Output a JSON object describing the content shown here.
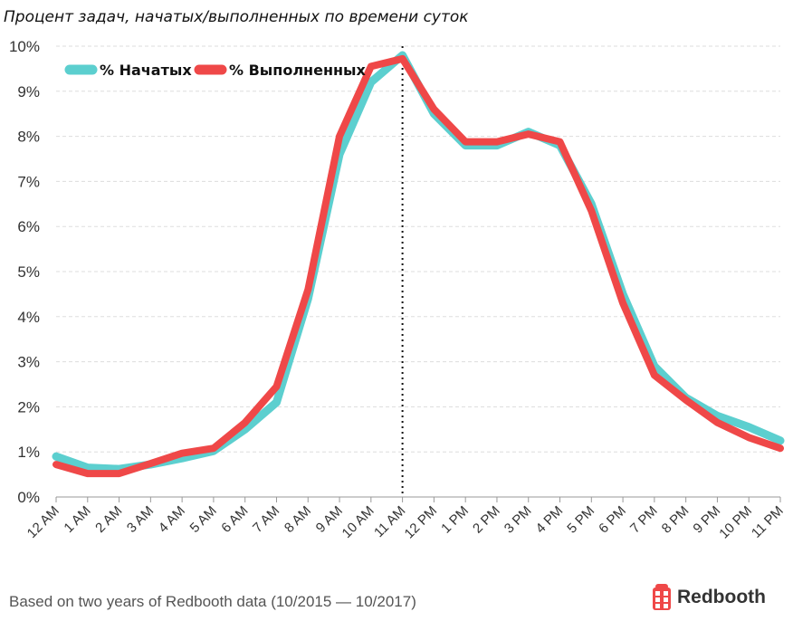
{
  "chart_data": {
    "type": "line",
    "title": "Процент задач, начатых/выполненных по времени суток",
    "xlabel": "",
    "ylabel": "",
    "categories": [
      "12 AM",
      "1 AM",
      "2 AM",
      "3 AM",
      "4 AM",
      "5 AM",
      "6 AM",
      "7 AM",
      "8 AM",
      "9 AM",
      "10 AM",
      "11 AM",
      "12 PM",
      "1 PM",
      "2 PM",
      "3 PM",
      "4 PM",
      "5 PM",
      "6 PM",
      "7 PM",
      "8 PM",
      "9 PM",
      "10 PM",
      "11 PM"
    ],
    "yticks": [
      "0%",
      "1%",
      "2%",
      "3%",
      "4%",
      "5%",
      "6%",
      "7%",
      "8%",
      "9%",
      "10%"
    ],
    "ylim": [
      0,
      10
    ],
    "grid": "horizontal dashed",
    "legend_position": "top-left",
    "marker_line": "11 AM",
    "series": [
      {
        "name": "% Начатых",
        "color": "#5ccfcf",
        "values": [
          0.9,
          0.65,
          0.62,
          0.72,
          0.86,
          1.02,
          1.5,
          2.1,
          4.4,
          7.6,
          9.2,
          9.8,
          8.5,
          7.8,
          7.8,
          8.1,
          7.8,
          6.5,
          4.5,
          2.9,
          2.2,
          1.8,
          1.55,
          1.25
        ]
      },
      {
        "name": "% Выполненных",
        "color": "#ef4848",
        "values": [
          0.72,
          0.52,
          0.52,
          0.74,
          0.97,
          1.08,
          1.65,
          2.45,
          4.6,
          8.0,
          9.55,
          9.72,
          8.6,
          7.88,
          7.88,
          8.05,
          7.88,
          6.35,
          4.3,
          2.7,
          2.15,
          1.65,
          1.32,
          1.08
        ]
      }
    ]
  },
  "footnote": "Based on two years of Redbooth data (10/2015 — 10/2017)",
  "brand": {
    "name": "Redbooth",
    "color": "#ef4848"
  }
}
